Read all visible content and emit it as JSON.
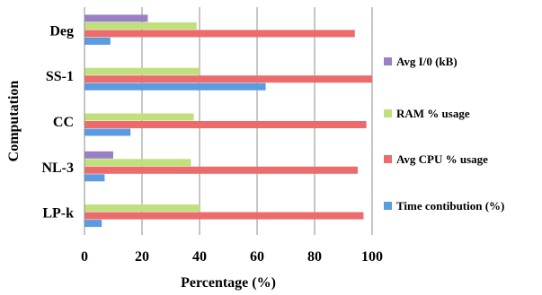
{
  "chart_data": {
    "type": "bar",
    "orientation": "horizontal",
    "title": "",
    "xlabel": "Percentage (%)",
    "ylabel": "Computation",
    "xlim": [
      0,
      100
    ],
    "xticks": [
      0,
      20,
      40,
      60,
      80,
      100
    ],
    "grid": "vertical",
    "legend_position": "right",
    "categories": [
      "Deg",
      "SS-1",
      "CC",
      "NL-3",
      "LP-k"
    ],
    "series": [
      {
        "name": "Avg I/0 (kB)",
        "color": "#9b7fc4",
        "values": [
          22,
          0,
          0,
          10,
          0
        ]
      },
      {
        "name": "RAM % usage",
        "color": "#c0e07e",
        "values": [
          39,
          40,
          38,
          37,
          40
        ]
      },
      {
        "name": "Avg CPU % usage",
        "color": "#ee6b6b",
        "values": [
          94,
          100,
          98,
          95,
          97
        ]
      },
      {
        "name": "Time contibution (%)",
        "color": "#5b9be0",
        "values": [
          9,
          63,
          16,
          7,
          6
        ]
      }
    ]
  }
}
